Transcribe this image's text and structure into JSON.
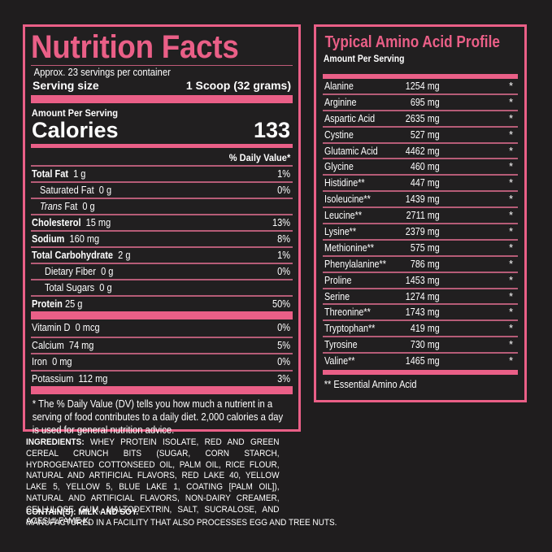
{
  "colors": {
    "background": "#1f1d1e",
    "accent": "#ea5f87",
    "text": "#ffffff"
  },
  "nutrition_facts": {
    "title": "Nutrition Facts",
    "servings_per_container": "Approx. 23 servings per container",
    "serving_size_label": "Serving size",
    "serving_size_value": "1 Scoop (32 grams)",
    "amount_per_serving": "Amount Per Serving",
    "calories_label": "Calories",
    "calories_value": "133",
    "daily_value_header": "% Daily Value*",
    "rows": [
      {
        "name": "Total Fat",
        "amount": "1 g",
        "dv": "1%"
      },
      {
        "name": "Saturated Fat",
        "amount": "0 g",
        "dv": "0%"
      },
      {
        "name": "Trans",
        "name_suffix": "Fat",
        "amount": "0 g",
        "dv": ""
      },
      {
        "name": "Cholesterol",
        "amount": "15 mg",
        "dv": "13%"
      },
      {
        "name": "Sodium",
        "amount": "160 mg",
        "dv": "8%"
      },
      {
        "name": "Total Carbohydrate",
        "amount": "2 g",
        "dv": "1%"
      },
      {
        "name": "Dietary Fiber",
        "amount": "0 g",
        "dv": "0%"
      },
      {
        "name": "Total Sugars",
        "amount": "0 g",
        "dv": ""
      },
      {
        "name": "Protein",
        "amount": "25 g",
        "dv": "50%"
      }
    ],
    "vitamins": [
      {
        "name": "Vitamin D",
        "amount": "0 mcg",
        "dv": "0%"
      },
      {
        "name": "Calcium",
        "amount": "74 mg",
        "dv": "5%"
      },
      {
        "name": "Iron",
        "amount": "0 mg",
        "dv": "0%"
      },
      {
        "name": "Potassium",
        "amount": "112 mg",
        "dv": "3%"
      }
    ],
    "footnote": "* The % Daily Value (DV) tells you how much a nutrient in a serving of food contributes to a daily diet. 2,000 calories a day is used for general nutrition advice."
  },
  "ingredients": {
    "label": "INGREDIENTS:",
    "text": "WHEY PROTEIN ISOLATE, RED AND GREEN CEREAL CRUNCH BITS (SUGAR, CORN STARCH, HYDROGENATED COTTONSEED OIL, PALM OIL, RICE FLOUR, NATURAL AND ARTIFICIAL FLAVORS, RED LAKE 40, YELLOW LAKE 5, YELLOW 5, BLUE LAKE 1, COATING [PALM OIL]), NATURAL AND ARTIFICIAL FLAVORS, NON-DAIRY CREAMER, CELLULOSE GUM, MALTODEXTRIN, SALT, SUCRALOSE, AND ACESULFAME-K.",
    "contains": "CONTAIN(S): MILK AND SOY.",
    "facility": "MANUFACTURED IN A FACILITY THAT ALSO PROCESSES EGG AND TREE NUTS."
  },
  "amino_profile": {
    "title": "Typical Amino Acid Profile",
    "amount_per_serving": "Amount Per Serving",
    "rows": [
      {
        "name": "Alanine",
        "amount": "1254 mg",
        "dv": "*"
      },
      {
        "name": "Arginine",
        "amount": "695 mg",
        "dv": "*"
      },
      {
        "name": "Aspartic Acid",
        "amount": "2635 mg",
        "dv": "*"
      },
      {
        "name": "Cystine",
        "amount": "527 mg",
        "dv": "*"
      },
      {
        "name": "Glutamic Acid",
        "amount": "4462 mg",
        "dv": "*"
      },
      {
        "name": "Glycine",
        "amount": "460 mg",
        "dv": "*"
      },
      {
        "name": "Histidine**",
        "amount": "447 mg",
        "dv": "*"
      },
      {
        "name": "Isoleucine**",
        "amount": "1439 mg",
        "dv": "*"
      },
      {
        "name": "Leucine**",
        "amount": "2711 mg",
        "dv": "*"
      },
      {
        "name": "Lysine**",
        "amount": "2379 mg",
        "dv": "*"
      },
      {
        "name": "Methionine**",
        "amount": "575 mg",
        "dv": "*"
      },
      {
        "name": "Phenylalanine**",
        "amount": "786 mg",
        "dv": "*"
      },
      {
        "name": "Proline",
        "amount": "1453 mg",
        "dv": "*"
      },
      {
        "name": "Serine",
        "amount": "1274 mg",
        "dv": "*"
      },
      {
        "name": "Threonine**",
        "amount": "1743 mg",
        "dv": "*"
      },
      {
        "name": "Tryptophan**",
        "amount": "419 mg",
        "dv": "*"
      },
      {
        "name": "Tyrosine",
        "amount": "730 mg",
        "dv": "*"
      },
      {
        "name": "Valine**",
        "amount": "1465 mg",
        "dv": "*"
      }
    ],
    "footnote": "** Essential Amino Acid"
  }
}
